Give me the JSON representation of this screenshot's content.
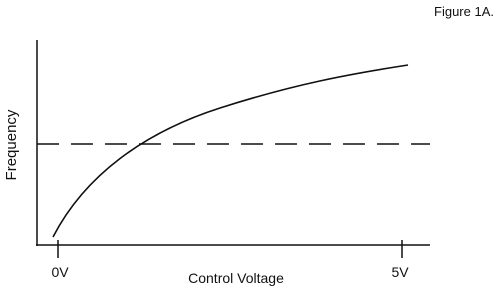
{
  "figure_label": "Figure 1A.",
  "y_axis_label": "Frequency",
  "x_axis_label": "Control Voltage",
  "x_ticks": [
    "0V",
    "5V"
  ]
}
